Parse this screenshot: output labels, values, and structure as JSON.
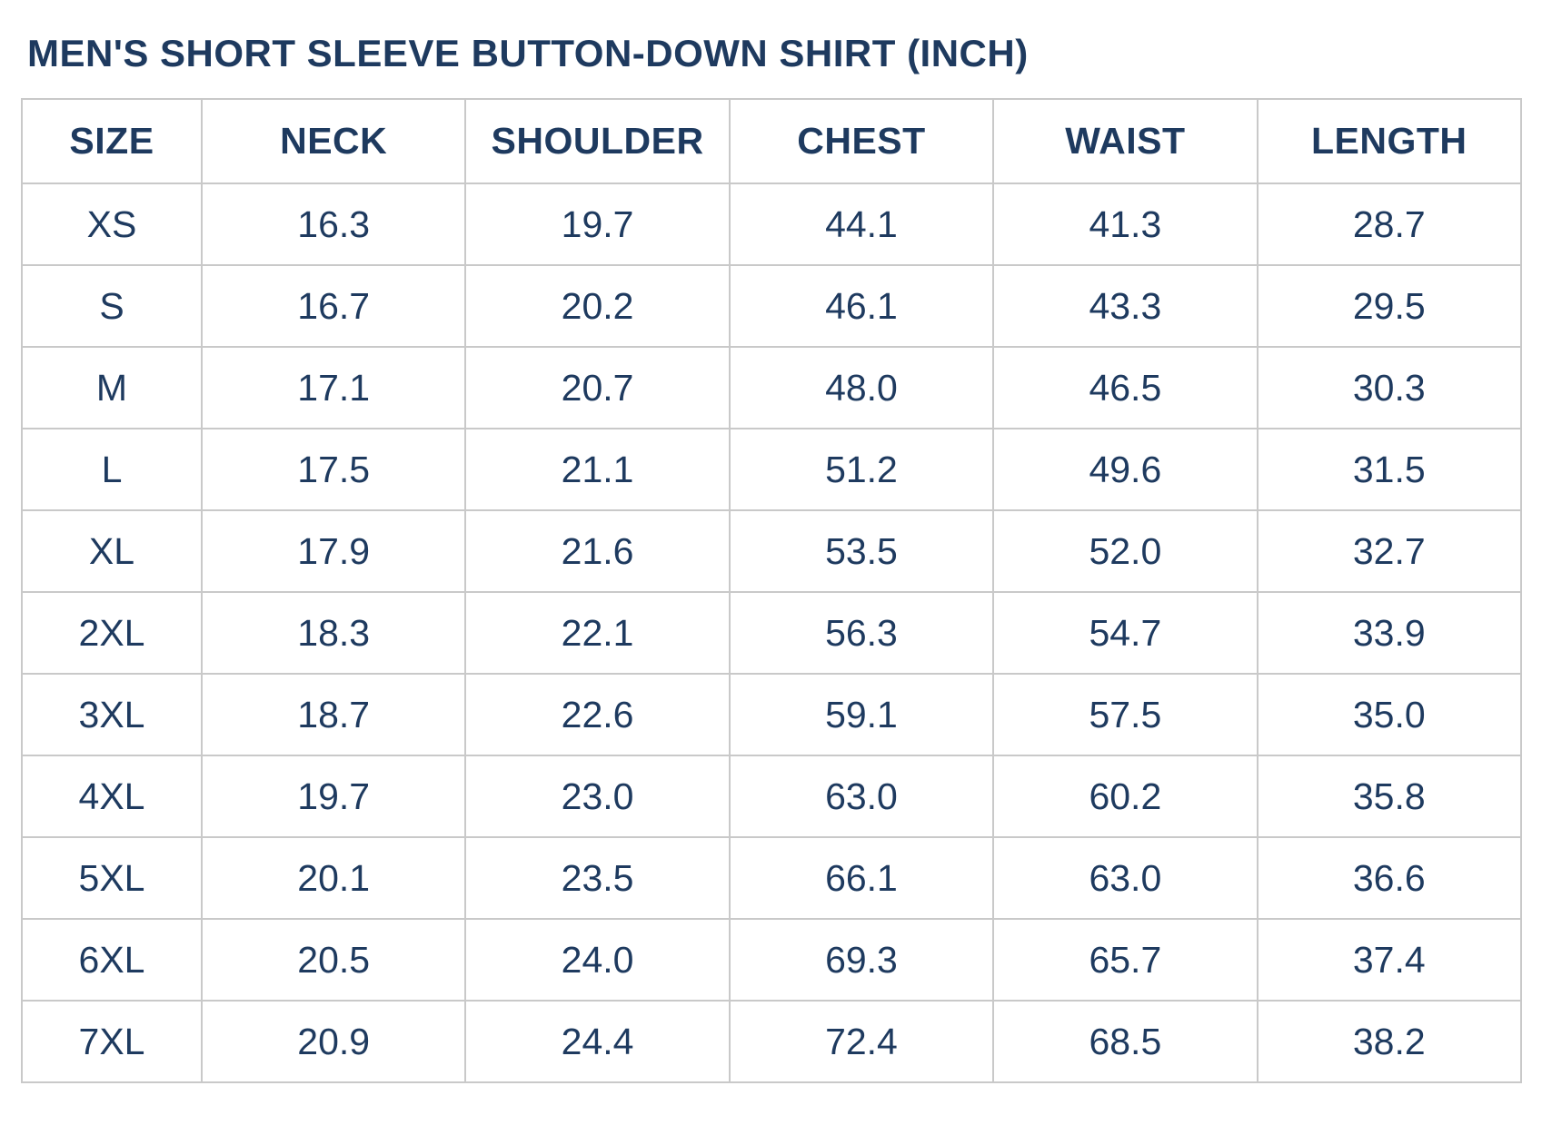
{
  "page": {
    "title": "MEN'S SHORT SLEEVE BUTTON-DOWN SHIRT (INCH)"
  },
  "colors": {
    "text": "#1e3a5f",
    "border": "#c9c9c9",
    "background": "#ffffff"
  },
  "chart_data": {
    "type": "table",
    "title": "MEN'S SHORT SLEEVE BUTTON-DOWN SHIRT (INCH)",
    "columns": [
      "SIZE",
      "NECK",
      "SHOULDER",
      "CHEST",
      "WAIST",
      "LENGTH"
    ],
    "rows": [
      [
        "XS",
        "16.3",
        "19.7",
        "44.1",
        "41.3",
        "28.7"
      ],
      [
        "S",
        "16.7",
        "20.2",
        "46.1",
        "43.3",
        "29.5"
      ],
      [
        "M",
        "17.1",
        "20.7",
        "48.0",
        "46.5",
        "30.3"
      ],
      [
        "L",
        "17.5",
        "21.1",
        "51.2",
        "49.6",
        "31.5"
      ],
      [
        "XL",
        "17.9",
        "21.6",
        "53.5",
        "52.0",
        "32.7"
      ],
      [
        "2XL",
        "18.3",
        "22.1",
        "56.3",
        "54.7",
        "33.9"
      ],
      [
        "3XL",
        "18.7",
        "22.6",
        "59.1",
        "57.5",
        "35.0"
      ],
      [
        "4XL",
        "19.7",
        "23.0",
        "63.0",
        "60.2",
        "35.8"
      ],
      [
        "5XL",
        "20.1",
        "23.5",
        "66.1",
        "63.0",
        "36.6"
      ],
      [
        "6XL",
        "20.5",
        "24.0",
        "69.3",
        "65.7",
        "37.4"
      ],
      [
        "7XL",
        "20.9",
        "24.4",
        "72.4",
        "68.5",
        "38.2"
      ]
    ]
  }
}
